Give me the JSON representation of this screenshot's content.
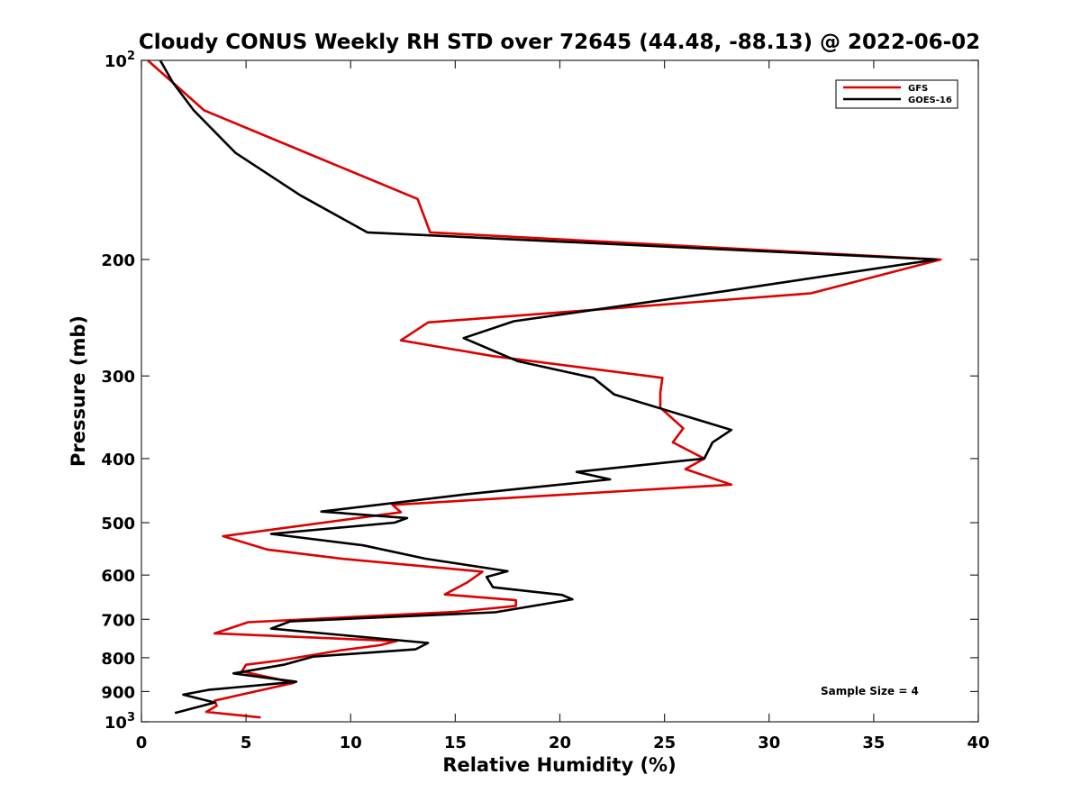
{
  "chart_data": {
    "type": "line",
    "title": "Cloudy CONUS Weekly RH STD over 72645 (44.48, -88.13) @ 2022-06-02",
    "xlabel": "Relative Humidity (%)",
    "ylabel": "Pressure (mb)",
    "xlim": [
      0,
      40
    ],
    "ylim": [
      100,
      1000
    ],
    "yscale": "log",
    "yreversed": true,
    "grid": false,
    "legend_position": "top-right",
    "x_ticks": [
      "0",
      "5",
      "10",
      "15",
      "20",
      "25",
      "30",
      "35",
      "40"
    ],
    "y_ticks": [
      {
        "value": 100,
        "base": "10",
        "exp": "2"
      },
      {
        "value": 200,
        "base": "200",
        "exp": ""
      },
      {
        "value": 300,
        "base": "300",
        "exp": ""
      },
      {
        "value": 400,
        "base": "400",
        "exp": ""
      },
      {
        "value": 500,
        "base": "500",
        "exp": ""
      },
      {
        "value": 600,
        "base": "600",
        "exp": ""
      },
      {
        "value": 700,
        "base": "700",
        "exp": ""
      },
      {
        "value": 800,
        "base": "800",
        "exp": ""
      },
      {
        "value": 900,
        "base": "900",
        "exp": ""
      },
      {
        "value": 1000,
        "base": "10",
        "exp": "3"
      }
    ],
    "annotation": "Sample Size = 4",
    "series": [
      {
        "name": "GFS",
        "color": "#dd0000",
        "points": [
          [
            0.3,
            100
          ],
          [
            3.0,
            119
          ],
          [
            8.6,
            141
          ],
          [
            13.2,
            162
          ],
          [
            13.8,
            182
          ],
          [
            38.2,
            200
          ],
          [
            32.0,
            225
          ],
          [
            13.7,
            249
          ],
          [
            12.4,
            265
          ],
          [
            16.8,
            280
          ],
          [
            24.9,
            302
          ],
          [
            24.8,
            318
          ],
          [
            24.8,
            335
          ],
          [
            25.9,
            360
          ],
          [
            25.4,
            378
          ],
          [
            26.9,
            400
          ],
          [
            26.0,
            415
          ],
          [
            28.2,
            438
          ],
          [
            12.0,
            470
          ],
          [
            12.4,
            482
          ],
          [
            3.9,
            524
          ],
          [
            6.0,
            549
          ],
          [
            9.6,
            567
          ],
          [
            16.3,
            593
          ],
          [
            15.6,
            615
          ],
          [
            14.5,
            642
          ],
          [
            17.9,
            655
          ],
          [
            17.9,
            668
          ],
          [
            15.0,
            682
          ],
          [
            5.1,
            707
          ],
          [
            3.5,
            735
          ],
          [
            12.2,
            755
          ],
          [
            11.4,
            766
          ],
          [
            9.6,
            779
          ],
          [
            6.6,
            808
          ],
          [
            5.0,
            820
          ],
          [
            4.8,
            839
          ],
          [
            7.3,
            873
          ],
          [
            3.5,
            929
          ],
          [
            3.6,
            946
          ],
          [
            3.1,
            966
          ],
          [
            5.7,
            985
          ]
        ]
      },
      {
        "name": "GOES-16",
        "color": "#000000",
        "points": [
          [
            0.9,
            100
          ],
          [
            1.5,
            108
          ],
          [
            2.5,
            119
          ],
          [
            4.5,
            138
          ],
          [
            7.6,
            160
          ],
          [
            10.8,
            182
          ],
          [
            38.0,
            200
          ],
          [
            28.0,
            223
          ],
          [
            17.8,
            248
          ],
          [
            15.4,
            263
          ],
          [
            18.0,
            285
          ],
          [
            21.6,
            302
          ],
          [
            22.6,
            320
          ],
          [
            28.2,
            362
          ],
          [
            27.3,
            378
          ],
          [
            26.9,
            400
          ],
          [
            20.8,
            419
          ],
          [
            22.4,
            430
          ],
          [
            15.5,
            453
          ],
          [
            8.6,
            481
          ],
          [
            12.7,
            492
          ],
          [
            12.1,
            500
          ],
          [
            6.2,
            520
          ],
          [
            10.6,
            541
          ],
          [
            13.6,
            567
          ],
          [
            17.5,
            592
          ],
          [
            16.5,
            604
          ],
          [
            16.8,
            626
          ],
          [
            20.1,
            643
          ],
          [
            20.6,
            653
          ],
          [
            16.9,
            683
          ],
          [
            7.1,
            705
          ],
          [
            6.2,
            723
          ],
          [
            13.7,
            760
          ],
          [
            13.1,
            777
          ],
          [
            8.2,
            797
          ],
          [
            6.8,
            820
          ],
          [
            4.4,
            845
          ],
          [
            7.4,
            870
          ],
          [
            3.2,
            895
          ],
          [
            2.0,
            910
          ],
          [
            3.5,
            935
          ],
          [
            1.6,
            970
          ]
        ]
      }
    ]
  }
}
